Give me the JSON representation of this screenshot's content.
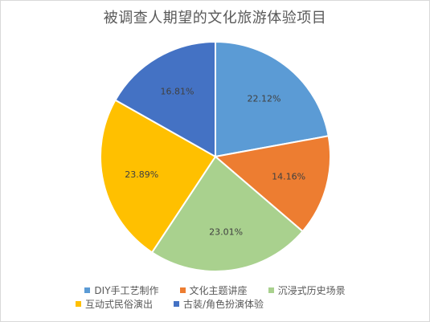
{
  "chart_data": {
    "type": "pie",
    "title": "被调查人期望的文化旅游体验项目",
    "legend_position": "bottom",
    "slices": [
      {
        "label": "DIY手工艺制作",
        "value": 22.12,
        "value_label": "22.12%",
        "color": "#5b9bd5"
      },
      {
        "label": "文化主题讲座",
        "value": 14.16,
        "value_label": "14.16%",
        "color": "#ed7d31"
      },
      {
        "label": "沉浸式历史场景",
        "value": 23.01,
        "value_label": "23.01%",
        "color": "#a9d18e"
      },
      {
        "label": "互动式民俗演出",
        "value": 23.89,
        "value_label": "23.89%",
        "color": "#ffc000"
      },
      {
        "label": "古装/角色扮演体验",
        "value": 16.81,
        "value_label": "16.81%",
        "color": "#4472c4"
      }
    ]
  }
}
